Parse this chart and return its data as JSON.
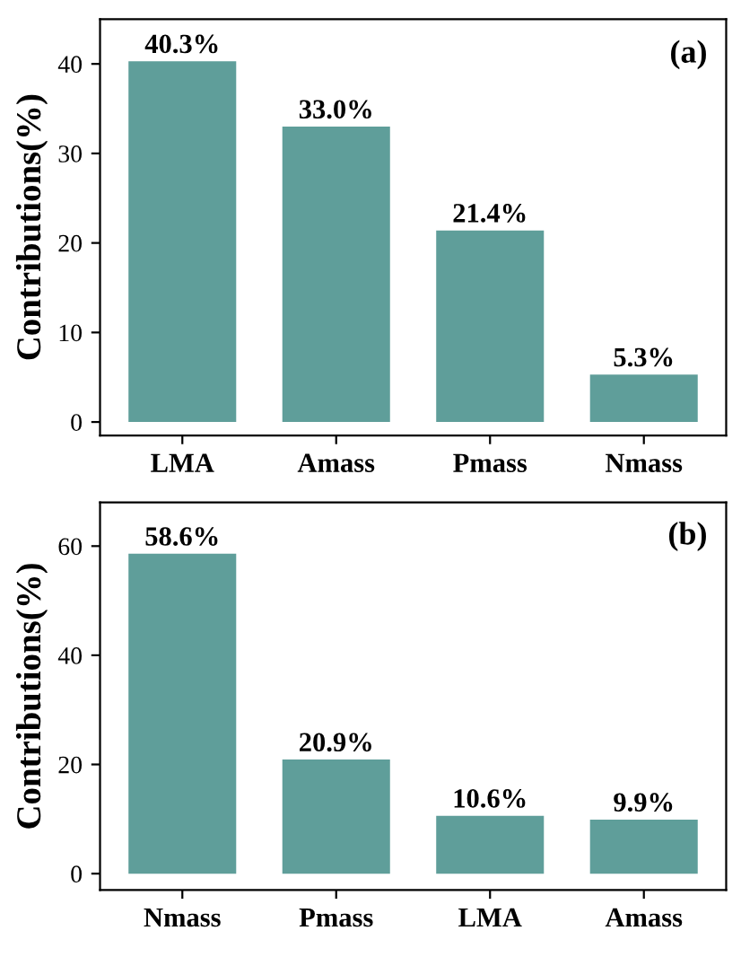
{
  "chart_data": [
    {
      "type": "bar",
      "categories": [
        "LMA",
        "Amass",
        "Pmass",
        "Nmass"
      ],
      "values": [
        40.3,
        33.0,
        21.4,
        5.3
      ],
      "value_labels": [
        "40.3%",
        "33.0%",
        "21.4%",
        "5.3%"
      ],
      "color": "#5f9e9a",
      "ylabel": "Contributions(%)",
      "ylim": [
        -1.5,
        45
      ],
      "yticks": [
        0,
        10,
        20,
        30,
        40
      ],
      "annotations": [
        "(a)"
      ],
      "grid": false,
      "legend": false
    },
    {
      "type": "bar",
      "categories": [
        "Nmass",
        "Pmass",
        "LMA",
        "Amass"
      ],
      "values": [
        58.6,
        20.9,
        10.6,
        9.9
      ],
      "value_labels": [
        "58.6%",
        "20.9%",
        "10.6%",
        "9.9%"
      ],
      "color": "#5f9e9a",
      "ylabel": "Contributions(%)",
      "ylim": [
        -3,
        68
      ],
      "yticks": [
        0,
        20,
        40,
        60
      ],
      "annotations": [
        "(b)"
      ],
      "grid": false,
      "legend": false
    }
  ]
}
